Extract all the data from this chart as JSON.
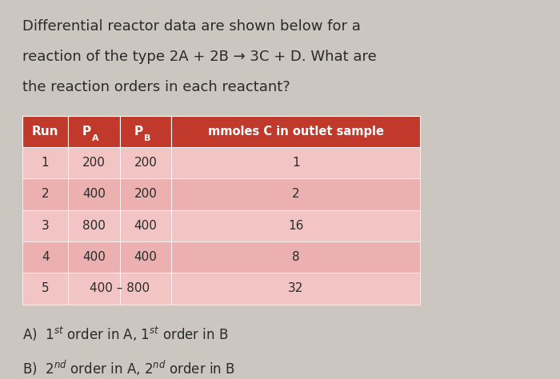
{
  "title_line1": "Differential reactor data are shown below for a",
  "title_line2": "reaction of the type 2A + 2B → 3C + D. What are",
  "title_line3": "the reaction orders in each reactant?",
  "rows_data": [
    [
      "1",
      "200",
      "200",
      "1"
    ],
    [
      "2",
      "400",
      "200",
      "2"
    ],
    [
      "3",
      "800",
      "400",
      "16"
    ],
    [
      "4",
      "400",
      "400",
      "8"
    ],
    [
      "5",
      "400 – 800",
      "",
      "32"
    ]
  ],
  "header_bg": "#c0392b",
  "header_fg": "#ffffff",
  "row_colors": [
    "#f2c4c4",
    "#edb0b0",
    "#f2c4c4",
    "#edb0b0",
    "#f2c4c4"
  ],
  "bg_color": "#cbc7c0",
  "text_color": "#2a2a2a",
  "font_size_title": 13,
  "font_size_table": 11,
  "font_size_answers": 12
}
